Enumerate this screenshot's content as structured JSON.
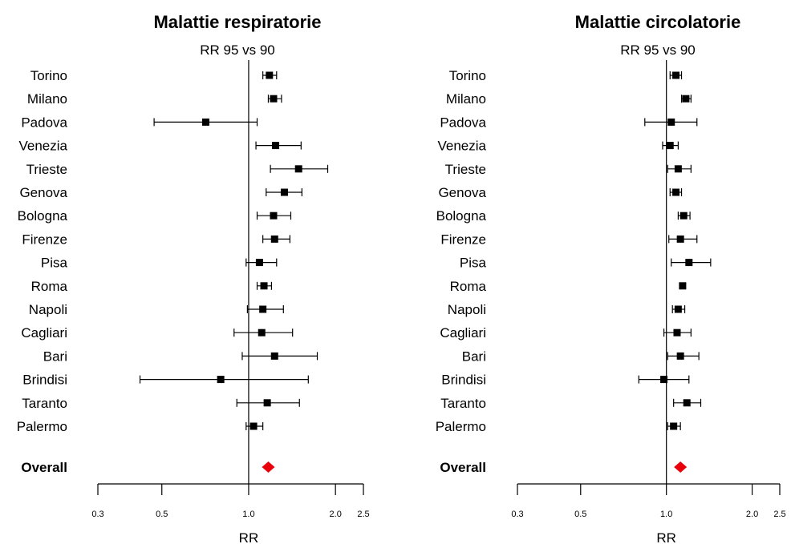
{
  "chart_data": [
    {
      "type": "forest",
      "title": "Malattie respiratorie",
      "subtitle": "RR 95 vs 90",
      "xlabel": "RR",
      "x_scale": "log",
      "xlim": [
        0.3,
        2.5
      ],
      "xticks": [
        0.3,
        0.5,
        1.0,
        2.0,
        2.5
      ],
      "xtick_labels": [
        "0.3",
        "0.5",
        "1.0",
        "2.0",
        "2.5"
      ],
      "reference_line": 1.0,
      "categories": [
        "Torino",
        "Milano",
        "Padova",
        "Venezia",
        "Trieste",
        "Genova",
        "Bologna",
        "Firenze",
        "Pisa",
        "Roma",
        "Napoli",
        "Cagliari",
        "Bari",
        "Brindisi",
        "Taranto",
        "Palermo"
      ],
      "rr": [
        1.18,
        1.22,
        0.71,
        1.24,
        1.49,
        1.33,
        1.22,
        1.23,
        1.09,
        1.13,
        1.12,
        1.11,
        1.23,
        0.8,
        1.16,
        1.04
      ],
      "lower": [
        1.12,
        1.17,
        0.47,
        1.06,
        1.19,
        1.15,
        1.07,
        1.12,
        0.98,
        1.07,
        0.99,
        0.89,
        0.95,
        0.42,
        0.91,
        0.98
      ],
      "upper": [
        1.25,
        1.3,
        1.07,
        1.52,
        1.88,
        1.53,
        1.4,
        1.39,
        1.25,
        1.2,
        1.32,
        1.42,
        1.73,
        1.61,
        1.5,
        1.12
      ],
      "overall_label": "Overall",
      "overall_value": 1.17,
      "overall_color": "#e8000b"
    },
    {
      "type": "forest",
      "title": "Malattie circolatorie",
      "subtitle": "RR 95 vs 90",
      "xlabel": "RR",
      "x_scale": "log",
      "xlim": [
        0.3,
        2.5
      ],
      "xticks": [
        0.3,
        0.5,
        1.0,
        2.0,
        2.5
      ],
      "xtick_labels": [
        "0.3",
        "0.5",
        "1.0",
        "2.0",
        "2.5"
      ],
      "reference_line": 1.0,
      "categories": [
        "Torino",
        "Milano",
        "Padova",
        "Venezia",
        "Trieste",
        "Genova",
        "Bologna",
        "Firenze",
        "Pisa",
        "Roma",
        "Napoli",
        "Cagliari",
        "Bari",
        "Brindisi",
        "Taranto",
        "Palermo"
      ],
      "rr": [
        1.08,
        1.17,
        1.04,
        1.03,
        1.1,
        1.08,
        1.15,
        1.12,
        1.2,
        1.14,
        1.1,
        1.09,
        1.12,
        0.98,
        1.18,
        1.06
      ],
      "lower": [
        1.03,
        1.13,
        0.84,
        0.97,
        1.01,
        1.03,
        1.1,
        1.02,
        1.04,
        1.14,
        1.05,
        0.98,
        1.01,
        0.8,
        1.06,
        1.01
      ],
      "upper": [
        1.13,
        1.22,
        1.28,
        1.1,
        1.22,
        1.13,
        1.21,
        1.28,
        1.43,
        1.14,
        1.16,
        1.22,
        1.3,
        1.2,
        1.32,
        1.12
      ],
      "overall_label": "Overall",
      "overall_value": 1.12,
      "overall_color": "#e8000b"
    }
  ]
}
